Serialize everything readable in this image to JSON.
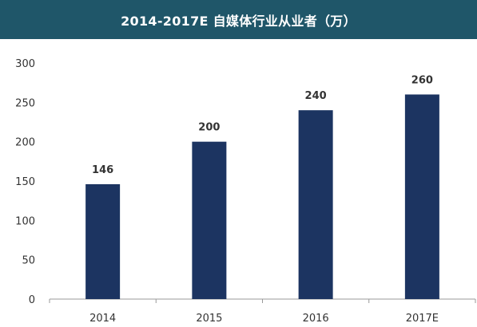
{
  "chart_data": {
    "type": "bar",
    "title": "2014-2017E  自媒体行业从业者（万）",
    "categories": [
      "2014",
      "2015",
      "2016",
      "2017E"
    ],
    "values": [
      146,
      200,
      240,
      260
    ],
    "data_labels": [
      "146",
      "200",
      "240",
      "260"
    ],
    "xlabel": "",
    "ylabel": "",
    "ylim": [
      0,
      300
    ],
    "yticks": [
      0,
      50,
      100,
      150,
      200,
      250,
      300
    ],
    "ytick_labels": [
      "0",
      "50",
      "100",
      "150",
      "200",
      "250",
      "300"
    ],
    "grid": false,
    "legend": "none",
    "colors": {
      "bar": "#1c3461",
      "title_bg": "#1f5669",
      "axis": "#999999"
    }
  }
}
